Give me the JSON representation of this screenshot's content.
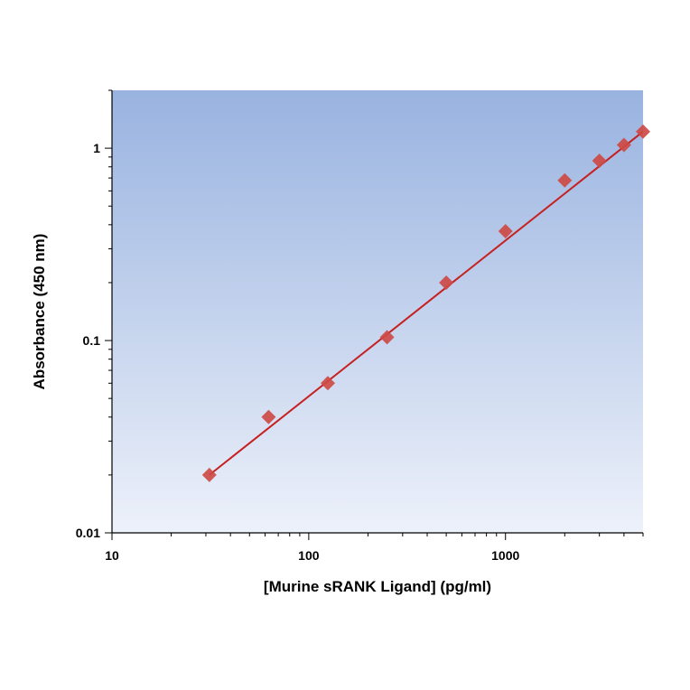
{
  "chart_data": {
    "type": "scatter",
    "title": "",
    "xlabel": "[Murine sRANK Ligand] (pg/ml)",
    "ylabel": "Absorbance (450 nm)",
    "x_scale": "log",
    "y_scale": "log",
    "xlim": [
      10,
      5000
    ],
    "ylim": [
      0.01,
      2
    ],
    "x_ticks": [
      10,
      100,
      1000
    ],
    "x_tick_labels": [
      "10",
      "100",
      "1000"
    ],
    "y_ticks": [
      0.01,
      0.1,
      1
    ],
    "y_tick_labels": [
      "0.01",
      "0.1",
      "1"
    ],
    "grid": false,
    "legend": "none",
    "series": [
      {
        "type": "scatter",
        "marker": "diamond",
        "x": [
          31.25,
          62.5,
          125,
          250,
          500,
          1000,
          2000,
          3000,
          4000,
          5000
        ],
        "y": [
          0.02,
          0.04,
          0.06,
          0.104,
          0.2,
          0.37,
          0.68,
          0.86,
          1.04,
          1.22
        ]
      },
      {
        "type": "line",
        "x": [
          31.25,
          5000
        ],
        "y": [
          0.02,
          1.22
        ]
      }
    ],
    "colors": {
      "marker": "#cd4a45",
      "fit_line": "#c62020",
      "plot_bg_top": "#99b3e0",
      "plot_bg_bottom": "#edf1fa",
      "axis": "#000000"
    }
  }
}
